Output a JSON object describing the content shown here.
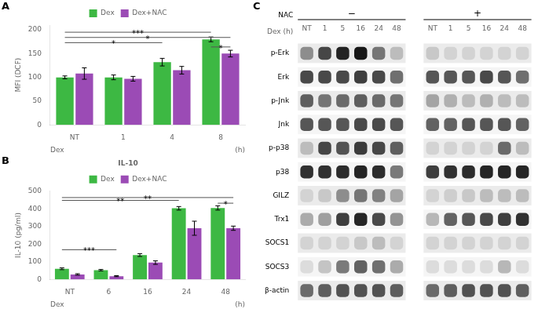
{
  "chart_data": [
    {
      "type": "bar",
      "panel": "A",
      "ylabel": "MFI (DCF)",
      "xlabel_left": "Dex",
      "xlabel_right": "(h)",
      "categories": [
        "NT",
        "1",
        "4",
        "8"
      ],
      "series": [
        {
          "name": "Dex",
          "color": "#3db843",
          "values": [
            100,
            100,
            132,
            180
          ],
          "errors": [
            3,
            5,
            8,
            5
          ]
        },
        {
          "name": "Dex+NAC",
          "color": "#9b4bb5",
          "values": [
            108,
            97,
            115,
            150
          ],
          "errors": [
            12,
            5,
            8,
            7
          ]
        }
      ],
      "ylim": [
        0,
        210
      ],
      "yticks": [
        0,
        50,
        100,
        150,
        200
      ],
      "grid": false,
      "legend": "top",
      "annotations": [
        {
          "text": "*",
          "y": 173,
          "from": {
            "category": "NT",
            "series": "Dex"
          },
          "to": {
            "category": "4",
            "series": "Dex"
          }
        },
        {
          "text": "*",
          "y": 184,
          "from": {
            "category": "NT",
            "series": "Dex"
          },
          "to": {
            "category": "8",
            "series": "Dex+NAC"
          }
        },
        {
          "text": "***",
          "y": 195,
          "from": {
            "category": "NT",
            "series": "Dex"
          },
          "to": {
            "category": "8",
            "series": "Dex"
          }
        },
        {
          "text": "*",
          "y": 164,
          "from": {
            "category": "8",
            "series": "Dex"
          },
          "to": {
            "category": "8",
            "series": "Dex+NAC"
          }
        }
      ]
    },
    {
      "type": "bar",
      "panel": "B",
      "title": "IL-10",
      "ylabel": "IL-10 (pg/ml)",
      "xlabel_left": "Dex",
      "xlabel_right": "(h)",
      "categories": [
        "NT",
        "6",
        "16",
        "24",
        "48"
      ],
      "series": [
        {
          "name": "Dex",
          "color": "#3db843",
          "values": [
            60,
            52,
            138,
            403,
            405
          ],
          "errors": [
            5,
            4,
            8,
            10,
            12
          ]
        },
        {
          "name": "Dex+NAC",
          "color": "#9b4bb5",
          "values": [
            28,
            18,
            95,
            290,
            290
          ],
          "errors": [
            4,
            3,
            10,
            40,
            12
          ]
        }
      ],
      "ylim": [
        0,
        500
      ],
      "yticks": [
        0,
        100,
        200,
        300,
        400,
        500
      ],
      "grid": false,
      "legend": "top",
      "annotations": [
        {
          "text": "***",
          "y": 168,
          "from": {
            "category": "NT",
            "series": "Dex"
          },
          "to": {
            "category": "6",
            "series": "Dex+NAC"
          }
        },
        {
          "text": "**",
          "y": 448,
          "from": {
            "category": "NT",
            "series": "Dex"
          },
          "to": {
            "category": "24",
            "series": "Dex"
          }
        },
        {
          "text": "**",
          "y": 464,
          "from": {
            "category": "NT",
            "series": "Dex"
          },
          "to": {
            "category": "48",
            "series": "Dex+NAC"
          }
        },
        {
          "text": "*",
          "y": 432,
          "from": {
            "category": "48",
            "series": "Dex"
          },
          "to": {
            "category": "48",
            "series": "Dex+NAC"
          }
        }
      ]
    },
    {
      "type": "heatmap",
      "panel": "C",
      "group_label": "NAC",
      "column_label": "Dex (h)",
      "columns": [
        "NT",
        "1",
        "5",
        "16",
        "24",
        "48"
      ],
      "rows": [
        "p-Erk",
        "Erk",
        "p-Jnk",
        "Jnk",
        "p-p38",
        "p38",
        "GILZ",
        "Trx1",
        "SOCS1",
        "SOCS3",
        "β-actin"
      ],
      "groups": [
        {
          "name": "−",
          "cells": [
            [
              0.4,
              0.7,
              0.85,
              0.9,
              0.5,
              0.2
            ],
            [
              0.7,
              0.7,
              0.7,
              0.75,
              0.7,
              0.55
            ],
            [
              0.6,
              0.5,
              0.55,
              0.6,
              0.55,
              0.5
            ],
            [
              0.65,
              0.65,
              0.65,
              0.7,
              0.7,
              0.65
            ],
            [
              0.2,
              0.7,
              0.65,
              0.75,
              0.7,
              0.6
            ],
            [
              0.8,
              0.8,
              0.82,
              0.85,
              0.82,
              0.5
            ],
            [
              0.1,
              0.15,
              0.4,
              0.5,
              0.45,
              0.3
            ],
            [
              0.3,
              0.35,
              0.75,
              0.85,
              0.7,
              0.4
            ],
            [
              0.1,
              0.1,
              0.1,
              0.15,
              0.2,
              0.1
            ],
            [
              0.1,
              0.2,
              0.5,
              0.6,
              0.55,
              0.3
            ],
            [
              0.55,
              0.6,
              0.65,
              0.65,
              0.65,
              0.6
            ]
          ]
        },
        {
          "name": "+",
          "cells": [
            [
              0.15,
              0.1,
              0.1,
              0.1,
              0.1,
              0.1
            ],
            [
              0.65,
              0.65,
              0.65,
              0.7,
              0.65,
              0.55
            ],
            [
              0.3,
              0.25,
              0.2,
              0.25,
              0.2,
              0.2
            ],
            [
              0.6,
              0.6,
              0.65,
              0.65,
              0.65,
              0.6
            ],
            [
              0.1,
              0.1,
              0.1,
              0.1,
              0.55,
              0.2
            ],
            [
              0.75,
              0.8,
              0.82,
              0.85,
              0.85,
              0.85
            ],
            [
              0.1,
              0.12,
              0.15,
              0.2,
              0.2,
              0.2
            ],
            [
              0.25,
              0.6,
              0.65,
              0.7,
              0.75,
              0.8
            ],
            [
              0.1,
              0.1,
              0.1,
              0.1,
              0.1,
              0.1
            ],
            [
              0.1,
              0.1,
              0.1,
              0.1,
              0.25,
              0.1
            ],
            [
              0.55,
              0.6,
              0.65,
              0.65,
              0.65,
              0.6
            ]
          ]
        }
      ],
      "grid": false
    }
  ]
}
